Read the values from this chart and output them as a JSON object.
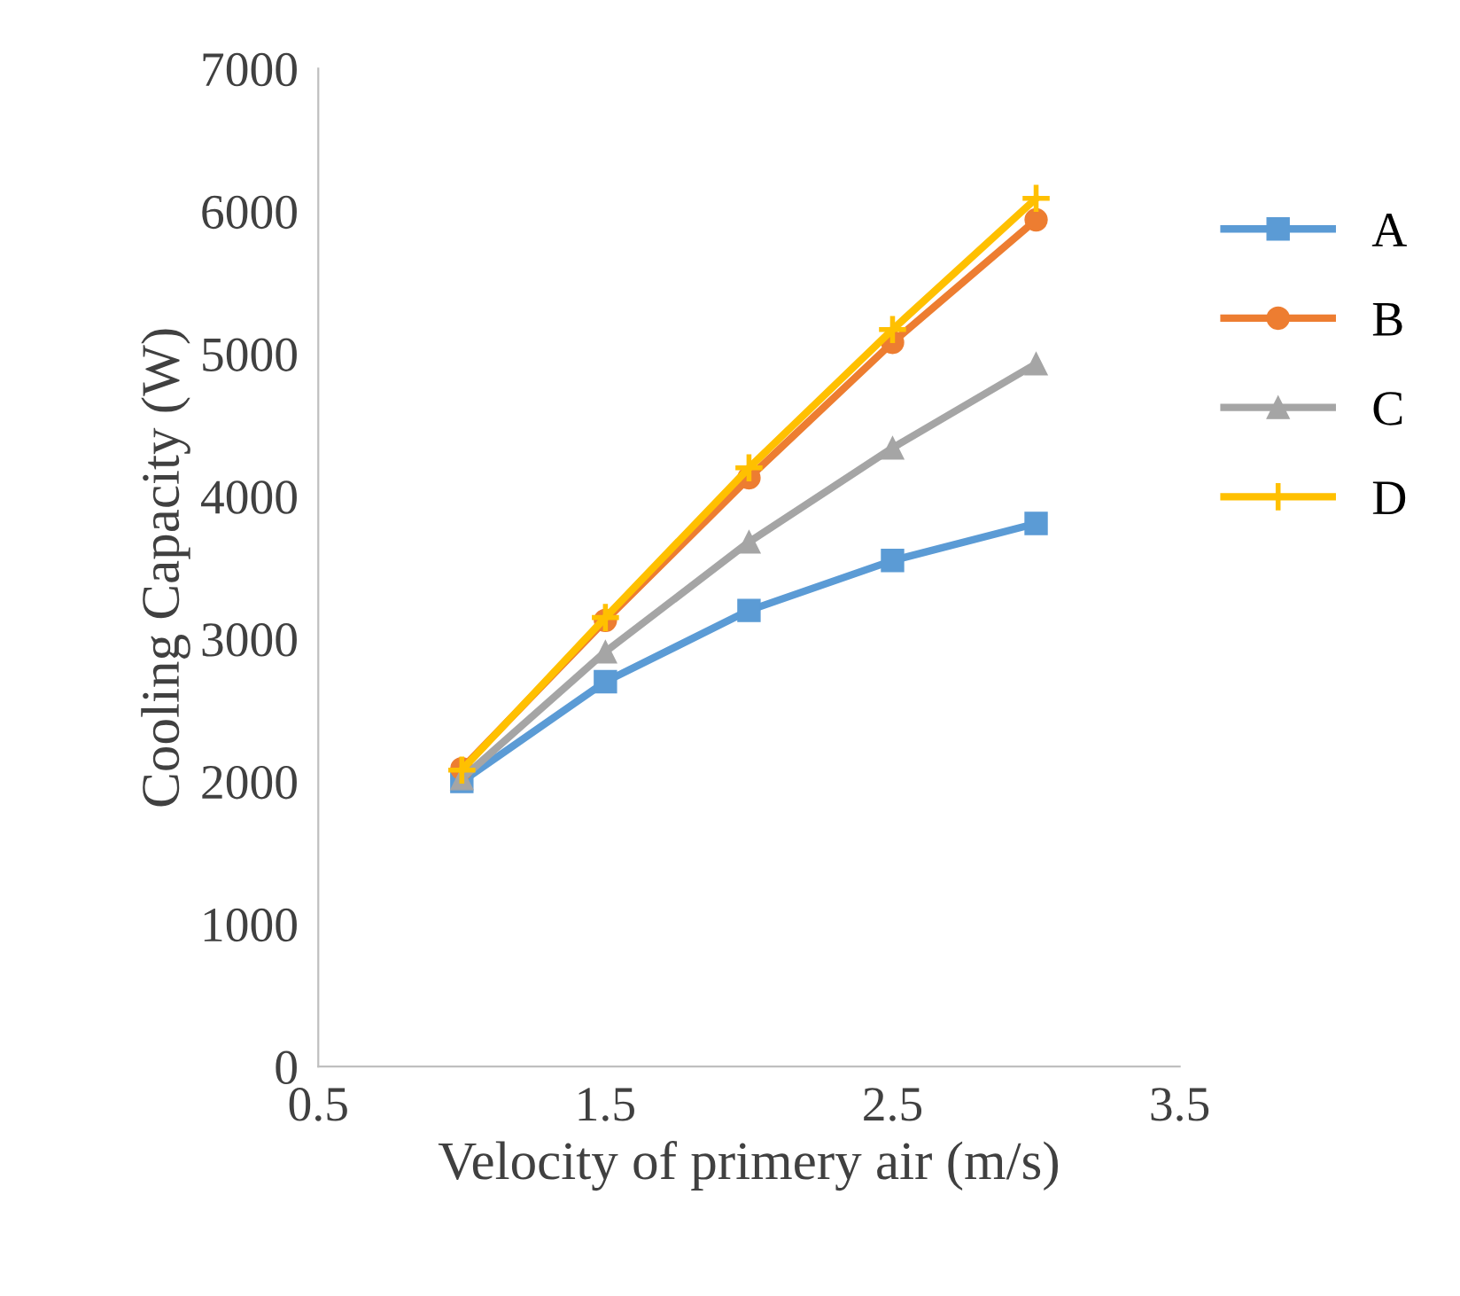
{
  "chart_data": {
    "type": "line",
    "xlabel": "Velocity of primery air (m/s)",
    "ylabel": "Cooling Capacity (W)",
    "x": [
      1.0,
      1.5,
      2.0,
      2.5,
      3.0
    ],
    "series": [
      {
        "name": "A",
        "color": "#5b9bd5",
        "marker": "square",
        "values": [
          2000,
          2700,
          3200,
          3550,
          3810
        ]
      },
      {
        "name": "B",
        "color": "#ed7d31",
        "marker": "circle",
        "values": [
          2090,
          3130,
          4130,
          5080,
          5940
        ]
      },
      {
        "name": "C",
        "color": "#a5a5a5",
        "marker": "triangle",
        "values": [
          2020,
          2910,
          3680,
          4340,
          4930
        ]
      },
      {
        "name": "D",
        "color": "#ffc000",
        "marker": "cross",
        "values": [
          2080,
          3150,
          4200,
          5170,
          6090
        ]
      }
    ],
    "xlim": [
      0.5,
      3.5
    ],
    "xticks": [
      0.5,
      1.5,
      2.5,
      3.5
    ],
    "ylim": [
      0,
      7000
    ],
    "yticks": [
      0,
      1000,
      2000,
      3000,
      4000,
      5000,
      6000,
      7000
    ],
    "grid": false,
    "legend": "right"
  }
}
